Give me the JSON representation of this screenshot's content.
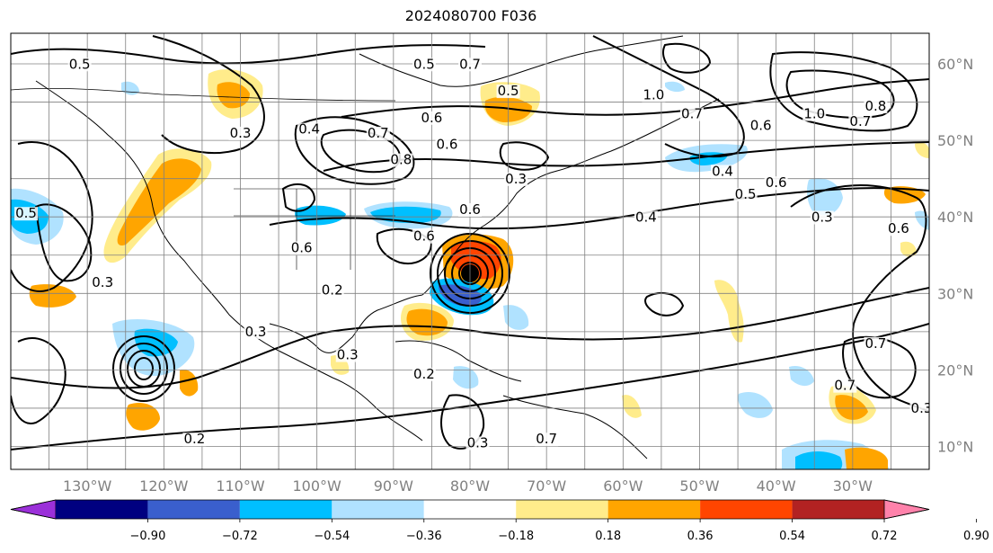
{
  "title": "2024080700 F036",
  "map": {
    "projection": "equirectangular",
    "lon_range": [
      -140,
      -20
    ],
    "lat_range": [
      7,
      64
    ],
    "grid": true,
    "lon_labels": [
      "130°W",
      "120°W",
      "110°W",
      "100°W",
      "90°W",
      "80°W",
      "70°W",
      "60°W",
      "50°W",
      "40°W",
      "30°W"
    ],
    "lon_values": [
      -130,
      -120,
      -110,
      -100,
      -90,
      -80,
      -70,
      -60,
      -50,
      -40,
      -30
    ],
    "lat_labels": [
      "60°N",
      "50°N",
      "40°N",
      "30°N",
      "20°N",
      "10°N"
    ],
    "lat_values": [
      60,
      50,
      40,
      30,
      20,
      10
    ],
    "contour_labels": [
      {
        "text": "0.5",
        "lon": -131,
        "lat": 59.5
      },
      {
        "text": "0.5",
        "lon": -86,
        "lat": 59.5
      },
      {
        "text": "0.7",
        "lon": -80,
        "lat": 59.5
      },
      {
        "text": "0.6",
        "lon": -85,
        "lat": 52.5
      },
      {
        "text": "0.3",
        "lon": -110,
        "lat": 50.5
      },
      {
        "text": "0.4",
        "lon": -101,
        "lat": 51
      },
      {
        "text": "0.7",
        "lon": -92,
        "lat": 50.5
      },
      {
        "text": "0.8",
        "lon": -89,
        "lat": 47
      },
      {
        "text": "0.6",
        "lon": -83,
        "lat": 49
      },
      {
        "text": "0.3",
        "lon": -74,
        "lat": 44.5
      },
      {
        "text": "0.6",
        "lon": -80,
        "lat": 40.5
      },
      {
        "text": "0.4",
        "lon": -47,
        "lat": 45.5
      },
      {
        "text": "0.5",
        "lon": -44,
        "lat": 42.5
      },
      {
        "text": "0.6",
        "lon": -40,
        "lat": 44
      },
      {
        "text": "0.4",
        "lon": -57,
        "lat": 39.5
      },
      {
        "text": "0.3",
        "lon": -34,
        "lat": 39.5
      },
      {
        "text": "0.6",
        "lon": -24,
        "lat": 38
      },
      {
        "text": "1.0",
        "lon": -56,
        "lat": 55.5
      },
      {
        "text": "0.8",
        "lon": -27,
        "lat": 54
      },
      {
        "text": "0.7",
        "lon": -29,
        "lat": 52
      },
      {
        "text": "0.6",
        "lon": -42,
        "lat": 51.5
      },
      {
        "text": "1.0",
        "lon": -35,
        "lat": 53
      },
      {
        "text": "0.7",
        "lon": -51,
        "lat": 53
      },
      {
        "text": "0.5",
        "lon": -75,
        "lat": 56
      },
      {
        "text": "0.6",
        "lon": -102,
        "lat": 35.5
      },
      {
        "text": "0.2",
        "lon": -98,
        "lat": 30
      },
      {
        "text": "0.3",
        "lon": -96,
        "lat": 21.5
      },
      {
        "text": "0.3",
        "lon": -108,
        "lat": 24.5
      },
      {
        "text": "0.2",
        "lon": -86,
        "lat": 19
      },
      {
        "text": "0.3",
        "lon": -79,
        "lat": 10
      },
      {
        "text": "0.2",
        "lon": -116,
        "lat": 10.5
      },
      {
        "text": "0.3",
        "lon": -128,
        "lat": 31
      },
      {
        "text": "0.5",
        "lon": -138,
        "lat": 40
      },
      {
        "text": "0.7",
        "lon": -27,
        "lat": 23
      },
      {
        "text": "0.7",
        "lon": -31,
        "lat": 17.5
      },
      {
        "text": "0.3",
        "lon": -21,
        "lat": 14.5
      },
      {
        "text": "0.7",
        "lon": -70,
        "lat": 10.5
      },
      {
        "text": "0.6",
        "lon": -86,
        "lat": 37
      }
    ]
  },
  "colorbar": {
    "colors": [
      "#9b30d9",
      "#000080",
      "#3a5fcd",
      "#00bfff",
      "#b0e2ff",
      "#ffffff",
      "#ffec8b",
      "#ffa500",
      "#ff4500",
      "#b22222",
      "#ff82ab"
    ],
    "tick_labels": [
      "−0.90",
      "−0.72",
      "−0.54",
      "−0.36",
      "−0.18",
      "0.18",
      "0.36",
      "0.54",
      "0.72",
      "0.90"
    ]
  }
}
